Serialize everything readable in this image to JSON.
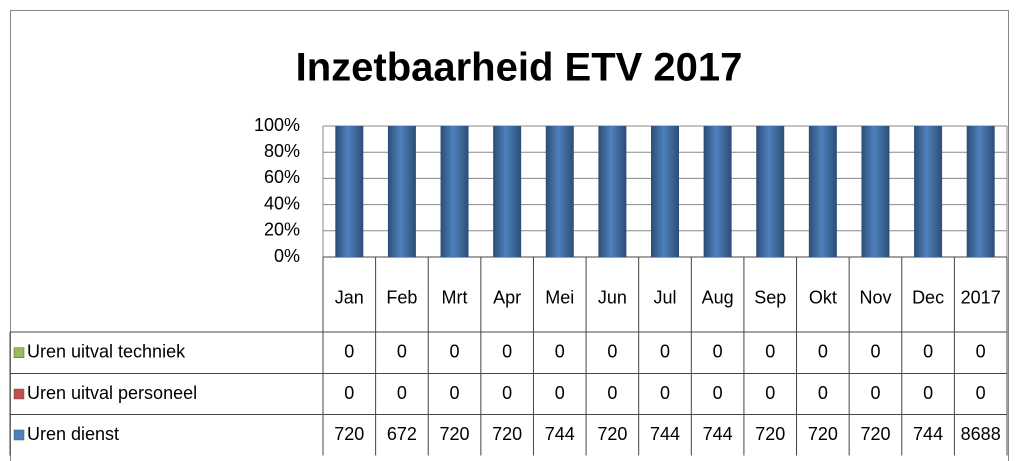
{
  "chart_data": {
    "type": "stacked_bar_100",
    "title": "Inzetbaarheid ETV 2017",
    "categories": [
      "Jan",
      "Feb",
      "Mrt",
      "Apr",
      "Mei",
      "Jun",
      "Jul",
      "Aug",
      "Sep",
      "Okt",
      "Nov",
      "Dec",
      "2017"
    ],
    "series": [
      {
        "name": "Uren uitval techniek",
        "color": "#9bbb59",
        "values": [
          0,
          0,
          0,
          0,
          0,
          0,
          0,
          0,
          0,
          0,
          0,
          0,
          0
        ]
      },
      {
        "name": "Uren uitval personeel",
        "color": "#c0504d",
        "values": [
          0,
          0,
          0,
          0,
          0,
          0,
          0,
          0,
          0,
          0,
          0,
          0,
          0
        ]
      },
      {
        "name": "Uren dienst",
        "color": "#4f81bd",
        "values": [
          720,
          672,
          720,
          720,
          744,
          720,
          744,
          744,
          720,
          720,
          720,
          744,
          8688
        ]
      }
    ],
    "ylim": [
      0,
      100
    ],
    "yticks": [
      {
        "value": 0,
        "label": "0%"
      },
      {
        "value": 20,
        "label": "20%"
      },
      {
        "value": 40,
        "label": "40%"
      },
      {
        "value": 60,
        "label": "60%"
      },
      {
        "value": 80,
        "label": "80%"
      },
      {
        "value": 100,
        "label": "100%"
      }
    ],
    "grid": true
  }
}
